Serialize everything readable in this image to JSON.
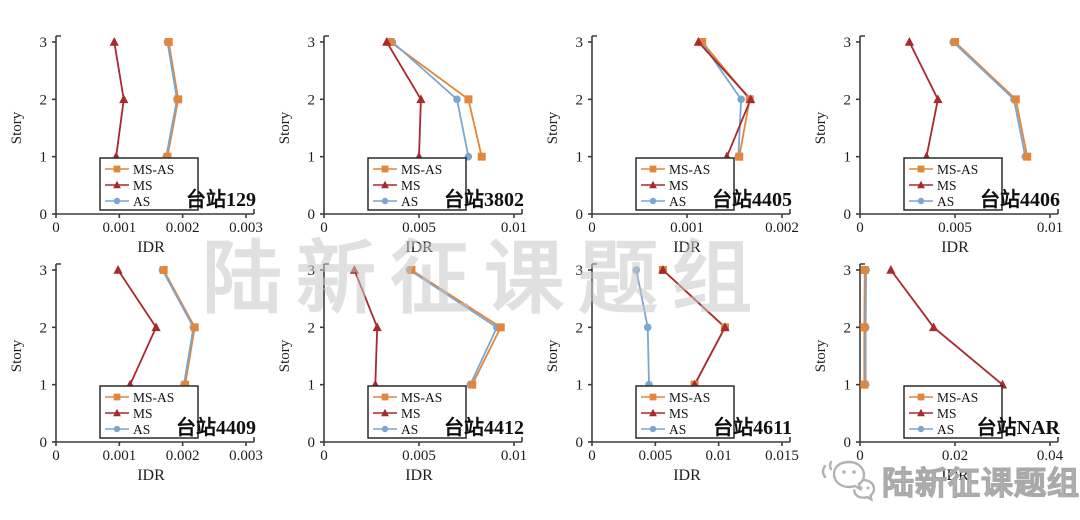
{
  "page": {
    "background": "#ffffff"
  },
  "watermark": {
    "text": "陆新征课题组"
  },
  "brand": {
    "icon": "wechat-chat-bubbles-icon",
    "text": "陆新征课题组"
  },
  "figure": {
    "xlabel": "IDR",
    "ylabel": "Story",
    "yticks": [
      0,
      1,
      2,
      3
    ],
    "stories": [
      1,
      2,
      3
    ],
    "colors": {
      "MS-AS": "#E2863B",
      "MS": "#A8292E",
      "AS": "#7CA6D2",
      "axis": "#3C3C3C",
      "text": "#1E1E1E"
    },
    "legend": {
      "position": "inside-bottom-left",
      "items": [
        {
          "name": "MS-AS",
          "label": "MS-AS",
          "marker": "square"
        },
        {
          "name": "MS",
          "label": "MS",
          "marker": "triangle"
        },
        {
          "name": "AS",
          "label": "AS",
          "marker": "circle"
        }
      ]
    }
  },
  "chart_data": [
    {
      "type": "line",
      "station": "台站129",
      "xlabel": "IDR",
      "ylabel": "Story",
      "xlim": [
        0,
        0.003
      ],
      "ylim": [
        0,
        3
      ],
      "xticks": [
        0,
        0.001,
        0.002,
        0.003
      ],
      "yticks": [
        0,
        1,
        2,
        3
      ],
      "y_stories": [
        1,
        2,
        3
      ],
      "series": [
        {
          "name": "MS-AS",
          "x": [
            0.00176,
            0.00193,
            0.00178
          ]
        },
        {
          "name": "MS",
          "x": [
            0.00095,
            0.00107,
            0.00092
          ]
        },
        {
          "name": "AS",
          "x": [
            0.00174,
            0.00191,
            0.00176
          ]
        }
      ]
    },
    {
      "type": "line",
      "station": "台站3802",
      "xlabel": "IDR",
      "ylabel": "Story",
      "xlim": [
        0,
        0.01
      ],
      "ylim": [
        0,
        3
      ],
      "xticks": [
        0,
        0.005,
        0.01
      ],
      "yticks": [
        0,
        1,
        2,
        3
      ],
      "y_stories": [
        1,
        2,
        3
      ],
      "series": [
        {
          "name": "MS-AS",
          "x": [
            0.0083,
            0.0076,
            0.0035
          ]
        },
        {
          "name": "MS",
          "x": [
            0.005,
            0.0051,
            0.0033
          ]
        },
        {
          "name": "AS",
          "x": [
            0.0076,
            0.007,
            0.0036
          ]
        }
      ]
    },
    {
      "type": "line",
      "station": "台站4405",
      "xlabel": "IDR",
      "ylabel": "Story",
      "xlim": [
        0,
        0.002
      ],
      "ylim": [
        0,
        3
      ],
      "xticks": [
        0,
        0.001,
        0.002
      ],
      "yticks": [
        0,
        1,
        2,
        3
      ],
      "y_stories": [
        1,
        2,
        3
      ],
      "series": [
        {
          "name": "MS-AS",
          "x": [
            0.00155,
            0.00166,
            0.00116
          ]
        },
        {
          "name": "MS",
          "x": [
            0.00142,
            0.00167,
            0.00112
          ]
        },
        {
          "name": "AS",
          "x": [
            0.00154,
            0.00157,
            0.00115
          ]
        }
      ]
    },
    {
      "type": "line",
      "station": "台站4406",
      "xlabel": "IDR",
      "ylabel": "Story",
      "xlim": [
        0,
        0.01
      ],
      "ylim": [
        0,
        3
      ],
      "xticks": [
        0,
        0.005,
        0.01
      ],
      "yticks": [
        0,
        1,
        2,
        3
      ],
      "y_stories": [
        1,
        2,
        3
      ],
      "series": [
        {
          "name": "MS-AS",
          "x": [
            0.0088,
            0.0082,
            0.005
          ]
        },
        {
          "name": "MS",
          "x": [
            0.0035,
            0.0041,
            0.0026
          ]
        },
        {
          "name": "AS",
          "x": [
            0.0087,
            0.0081,
            0.0049
          ]
        }
      ]
    },
    {
      "type": "line",
      "station": "台站4409",
      "xlabel": "IDR",
      "ylabel": "Story",
      "xlim": [
        0,
        0.003
      ],
      "ylim": [
        0,
        3
      ],
      "xticks": [
        0,
        0.001,
        0.002,
        0.003
      ],
      "yticks": [
        0,
        1,
        2,
        3
      ],
      "y_stories": [
        1,
        2,
        3
      ],
      "series": [
        {
          "name": "MS-AS",
          "x": [
            0.00204,
            0.00219,
            0.0017
          ]
        },
        {
          "name": "MS",
          "x": [
            0.00117,
            0.00158,
            0.00098
          ]
        },
        {
          "name": "AS",
          "x": [
            0.00202,
            0.00217,
            0.00168
          ]
        }
      ]
    },
    {
      "type": "line",
      "station": "台站4412",
      "xlabel": "IDR",
      "ylabel": "Story",
      "xlim": [
        0,
        0.01
      ],
      "ylim": [
        0,
        3
      ],
      "xticks": [
        0,
        0.005,
        0.01
      ],
      "yticks": [
        0,
        1,
        2,
        3
      ],
      "y_stories": [
        1,
        2,
        3
      ],
      "series": [
        {
          "name": "MS-AS",
          "x": [
            0.0078,
            0.0093,
            0.0046
          ]
        },
        {
          "name": "MS",
          "x": [
            0.0027,
            0.0028,
            0.0016
          ]
        },
        {
          "name": "AS",
          "x": [
            0.0077,
            0.0091,
            0.0045
          ]
        }
      ]
    },
    {
      "type": "line",
      "station": "台站4611",
      "xlabel": "IDR",
      "ylabel": "Story",
      "xlim": [
        0,
        0.015
      ],
      "ylim": [
        0,
        3
      ],
      "xticks": [
        0,
        0.005,
        0.01,
        0.015
      ],
      "yticks": [
        0,
        1,
        2,
        3
      ],
      "y_stories": [
        1,
        2,
        3
      ],
      "series": [
        {
          "name": "MS-AS",
          "x": [
            0.0081,
            0.0105,
            0.0056
          ]
        },
        {
          "name": "MS",
          "x": [
            0.0081,
            0.0105,
            0.0056
          ]
        },
        {
          "name": "AS",
          "x": [
            0.0045,
            0.0044,
            0.0035
          ]
        }
      ]
    },
    {
      "type": "line",
      "station": "台站NAR",
      "xlabel": "IDR",
      "ylabel": "Story",
      "xlim": [
        0,
        0.04
      ],
      "ylim": [
        0,
        3
      ],
      "xticks": [
        0,
        0.02,
        0.04
      ],
      "yticks": [
        0,
        1,
        2,
        3
      ],
      "y_stories": [
        1,
        2,
        3
      ],
      "series": [
        {
          "name": "MS-AS",
          "x": [
            0.0009,
            0.0009,
            0.001
          ]
        },
        {
          "name": "MS",
          "x": [
            0.03,
            0.0155,
            0.0065
          ]
        },
        {
          "name": "AS",
          "x": [
            0.0012,
            0.0012,
            0.0013
          ]
        }
      ]
    }
  ]
}
